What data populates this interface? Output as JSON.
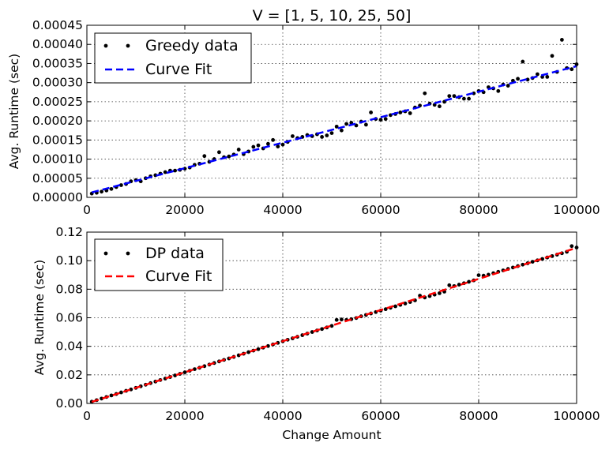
{
  "chart_data": [
    {
      "type": "scatter",
      "title": "V = [1, 5, 10, 25, 50]",
      "xlabel": "",
      "ylabel": "Avg. Runtime (sec)",
      "xlim": [
        0,
        100000
      ],
      "ylim": [
        0,
        0.00045
      ],
      "xticks": [
        "0",
        "20000",
        "40000",
        "60000",
        "80000",
        "100000"
      ],
      "yticks": [
        "0.00000",
        "0.00005",
        "0.00010",
        "0.00015",
        "0.00020",
        "0.00025",
        "0.00030",
        "0.00035",
        "0.00040",
        "0.00045"
      ],
      "grid": true,
      "legend_position": "top-left",
      "series": [
        {
          "name": "Greedy data",
          "kind": "points",
          "color": "#000000",
          "x": [
            1000,
            2000,
            3000,
            4000,
            5000,
            6000,
            7000,
            8000,
            9000,
            10000,
            11000,
            12000,
            13000,
            14000,
            15000,
            16000,
            17000,
            18000,
            19000,
            20000,
            21000,
            22000,
            23000,
            24000,
            25000,
            26000,
            27000,
            28000,
            29000,
            30000,
            31000,
            32000,
            33000,
            34000,
            35000,
            36000,
            37000,
            38000,
            39000,
            40000,
            41000,
            42000,
            43000,
            44000,
            45000,
            46000,
            47000,
            48000,
            49000,
            50000,
            51000,
            52000,
            53000,
            54000,
            55000,
            56000,
            57000,
            58000,
            59000,
            60000,
            61000,
            62000,
            63000,
            64000,
            65000,
            66000,
            67000,
            68000,
            69000,
            70000,
            71000,
            72000,
            73000,
            74000,
            75000,
            76000,
            77000,
            78000,
            79000,
            80000,
            81000,
            82000,
            83000,
            84000,
            85000,
            86000,
            87000,
            88000,
            89000,
            90000,
            91000,
            92000,
            93000,
            94000,
            95000,
            96000,
            97000,
            98000,
            99000,
            100000
          ],
          "y": [
            1e-05,
            1.2e-05,
            1.5e-05,
            1.8e-05,
            2.2e-05,
            2.7e-05,
            3.2e-05,
            3.5e-05,
            4.2e-05,
            4.5e-05,
            4.2e-05,
            5e-05,
            5.5e-05,
            5.8e-05,
            6.2e-05,
            6.6e-05,
            7e-05,
            7e-05,
            7.2e-05,
            7.5e-05,
            7.8e-05,
            8.5e-05,
            8.8e-05,
            0.000108,
            9.3e-05,
            0.0001,
            0.000118,
            0.000105,
            0.000107,
            0.000112,
            0.000125,
            0.000113,
            0.00012,
            0.000132,
            0.000136,
            0.000128,
            0.00014,
            0.00015,
            0.000133,
            0.000138,
            0.000145,
            0.00016,
            0.000155,
            0.000158,
            0.000163,
            0.00016,
            0.000165,
            0.000158,
            0.000162,
            0.000168,
            0.000185,
            0.000175,
            0.000192,
            0.000195,
            0.000188,
            0.000198,
            0.00019,
            0.000222,
            0.000205,
            0.000203,
            0.000205,
            0.000215,
            0.000218,
            0.000222,
            0.000225,
            0.00022,
            0.000235,
            0.00024,
            0.000272,
            0.000245,
            0.000242,
            0.000238,
            0.00025,
            0.000265,
            0.000265,
            0.000262,
            0.000258,
            0.000258,
            0.000272,
            0.000278,
            0.000275,
            0.000288,
            0.000285,
            0.000278,
            0.000295,
            0.000292,
            0.000305,
            0.00031,
            0.000355,
            0.000308,
            0.000312,
            0.000322,
            0.000315,
            0.000315,
            0.00037,
            0.000328,
            0.000412,
            0.000338,
            0.000335,
            0.000348
          ]
        },
        {
          "name": "Curve Fit",
          "kind": "dashed-line",
          "color": "#0000ff",
          "x": [
            1000,
            100000
          ],
          "y": [
            1.3e-05,
            0.000343
          ]
        }
      ]
    },
    {
      "type": "scatter",
      "title": "",
      "xlabel": "Change Amount",
      "ylabel": "Avg. Runtime (sec)",
      "xlim": [
        0,
        100000
      ],
      "ylim": [
        0,
        0.12
      ],
      "xticks": [
        "0",
        "20000",
        "40000",
        "60000",
        "80000",
        "100000"
      ],
      "yticks": [
        "0.00",
        "0.02",
        "0.04",
        "0.06",
        "0.08",
        "0.10",
        "0.12"
      ],
      "grid": true,
      "legend_position": "top-left",
      "series": [
        {
          "name": "DP data",
          "kind": "points",
          "color": "#000000",
          "x": [
            1000,
            2000,
            3000,
            4000,
            5000,
            6000,
            7000,
            8000,
            9000,
            10000,
            11000,
            12000,
            13000,
            14000,
            15000,
            16000,
            17000,
            18000,
            19000,
            20000,
            21000,
            22000,
            23000,
            24000,
            25000,
            26000,
            27000,
            28000,
            29000,
            30000,
            31000,
            32000,
            33000,
            34000,
            35000,
            36000,
            37000,
            38000,
            39000,
            40000,
            41000,
            42000,
            43000,
            44000,
            45000,
            46000,
            47000,
            48000,
            49000,
            50000,
            51000,
            52000,
            53000,
            54000,
            55000,
            56000,
            57000,
            58000,
            59000,
            60000,
            61000,
            62000,
            63000,
            64000,
            65000,
            66000,
            67000,
            68000,
            69000,
            70000,
            71000,
            72000,
            73000,
            74000,
            75000,
            76000,
            77000,
            78000,
            79000,
            80000,
            81000,
            82000,
            83000,
            84000,
            85000,
            86000,
            87000,
            88000,
            89000,
            90000,
            91000,
            92000,
            93000,
            94000,
            95000,
            96000,
            97000,
            98000,
            99000,
            100000
          ],
          "y": [
            0.0012,
            0.0023,
            0.0034,
            0.0045,
            0.0056,
            0.0066,
            0.0077,
            0.0088,
            0.0098,
            0.0109,
            0.012,
            0.0131,
            0.0142,
            0.0153,
            0.0164,
            0.0174,
            0.0185,
            0.0196,
            0.0207,
            0.0218,
            0.0229,
            0.024,
            0.025,
            0.0261,
            0.0272,
            0.0283,
            0.0294,
            0.0305,
            0.0315,
            0.0326,
            0.0337,
            0.0348,
            0.0359,
            0.037,
            0.038,
            0.0391,
            0.0402,
            0.0413,
            0.0424,
            0.0435,
            0.0446,
            0.0456,
            0.0467,
            0.0478,
            0.0489,
            0.05,
            0.0511,
            0.0521,
            0.0532,
            0.0543,
            0.0585,
            0.0588,
            0.0585,
            0.059,
            0.0598,
            0.061,
            0.062,
            0.063,
            0.064,
            0.065,
            0.066,
            0.067,
            0.068,
            0.069,
            0.07,
            0.071,
            0.0722,
            0.0755,
            0.0742,
            0.0752,
            0.0762,
            0.0772,
            0.0783,
            0.0828,
            0.0822,
            0.0832,
            0.0842,
            0.0852,
            0.0862,
            0.0898,
            0.0895,
            0.0902,
            0.0912,
            0.0922,
            0.0932,
            0.0942,
            0.0952,
            0.0962,
            0.0972,
            0.0982,
            0.0992,
            0.1002,
            0.1012,
            0.1022,
            0.1032,
            0.1042,
            0.1052,
            0.1062,
            0.1102,
            0.1092
          ]
        },
        {
          "name": "Curve Fit",
          "kind": "dashed-line",
          "color": "#ff0000",
          "x": [
            1000,
            100000
          ],
          "y": [
            0.0011,
            0.109
          ]
        }
      ]
    }
  ]
}
